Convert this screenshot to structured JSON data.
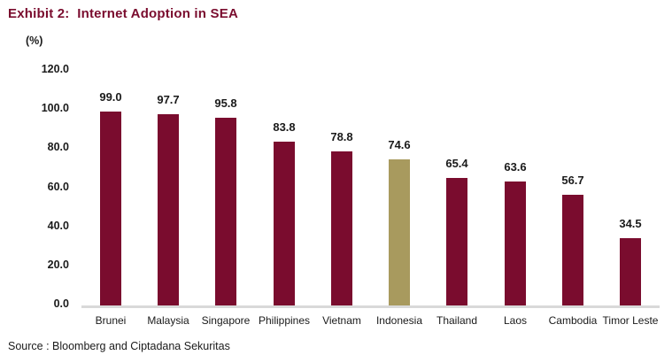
{
  "exhibit": {
    "title": "Exhibit 2:  Internet Adoption in SEA",
    "source": "Source : Bloomberg and Ciptadana Sekuritas"
  },
  "colors": {
    "title": "#7a0c2e",
    "bar": "#7a0c2e",
    "highlight_bar": "#a89a5e",
    "axis_line": "#d9d9d9",
    "text": "#1a1a1a"
  },
  "chart_data": {
    "type": "bar",
    "title": "Exhibit 2: Internet Adoption in SEA",
    "unit_label": "(%)",
    "categories": [
      "Brunei",
      "Malaysia",
      "Singapore",
      "Philippines",
      "Vietnam",
      "Indonesia",
      "Thailand",
      "Laos",
      "Cambodia",
      "Timor Leste"
    ],
    "values": [
      99.0,
      97.7,
      95.8,
      83.8,
      78.8,
      74.6,
      65.4,
      63.6,
      56.7,
      34.5
    ],
    "data_labels": [
      "99.0",
      "97.7",
      "95.8",
      "83.8",
      "78.8",
      "74.6",
      "65.4",
      "63.6",
      "56.7",
      "34.5"
    ],
    "highlight_category": "Indonesia",
    "highlight_index": 5,
    "xlabel": "",
    "ylabel": "(%)",
    "ylim": [
      0,
      120
    ],
    "ytick_labels": [
      "120.0",
      "100.0",
      "80.0",
      "60.0",
      "40.0",
      "20.0",
      "0.0"
    ],
    "grid": false,
    "legend": false
  }
}
